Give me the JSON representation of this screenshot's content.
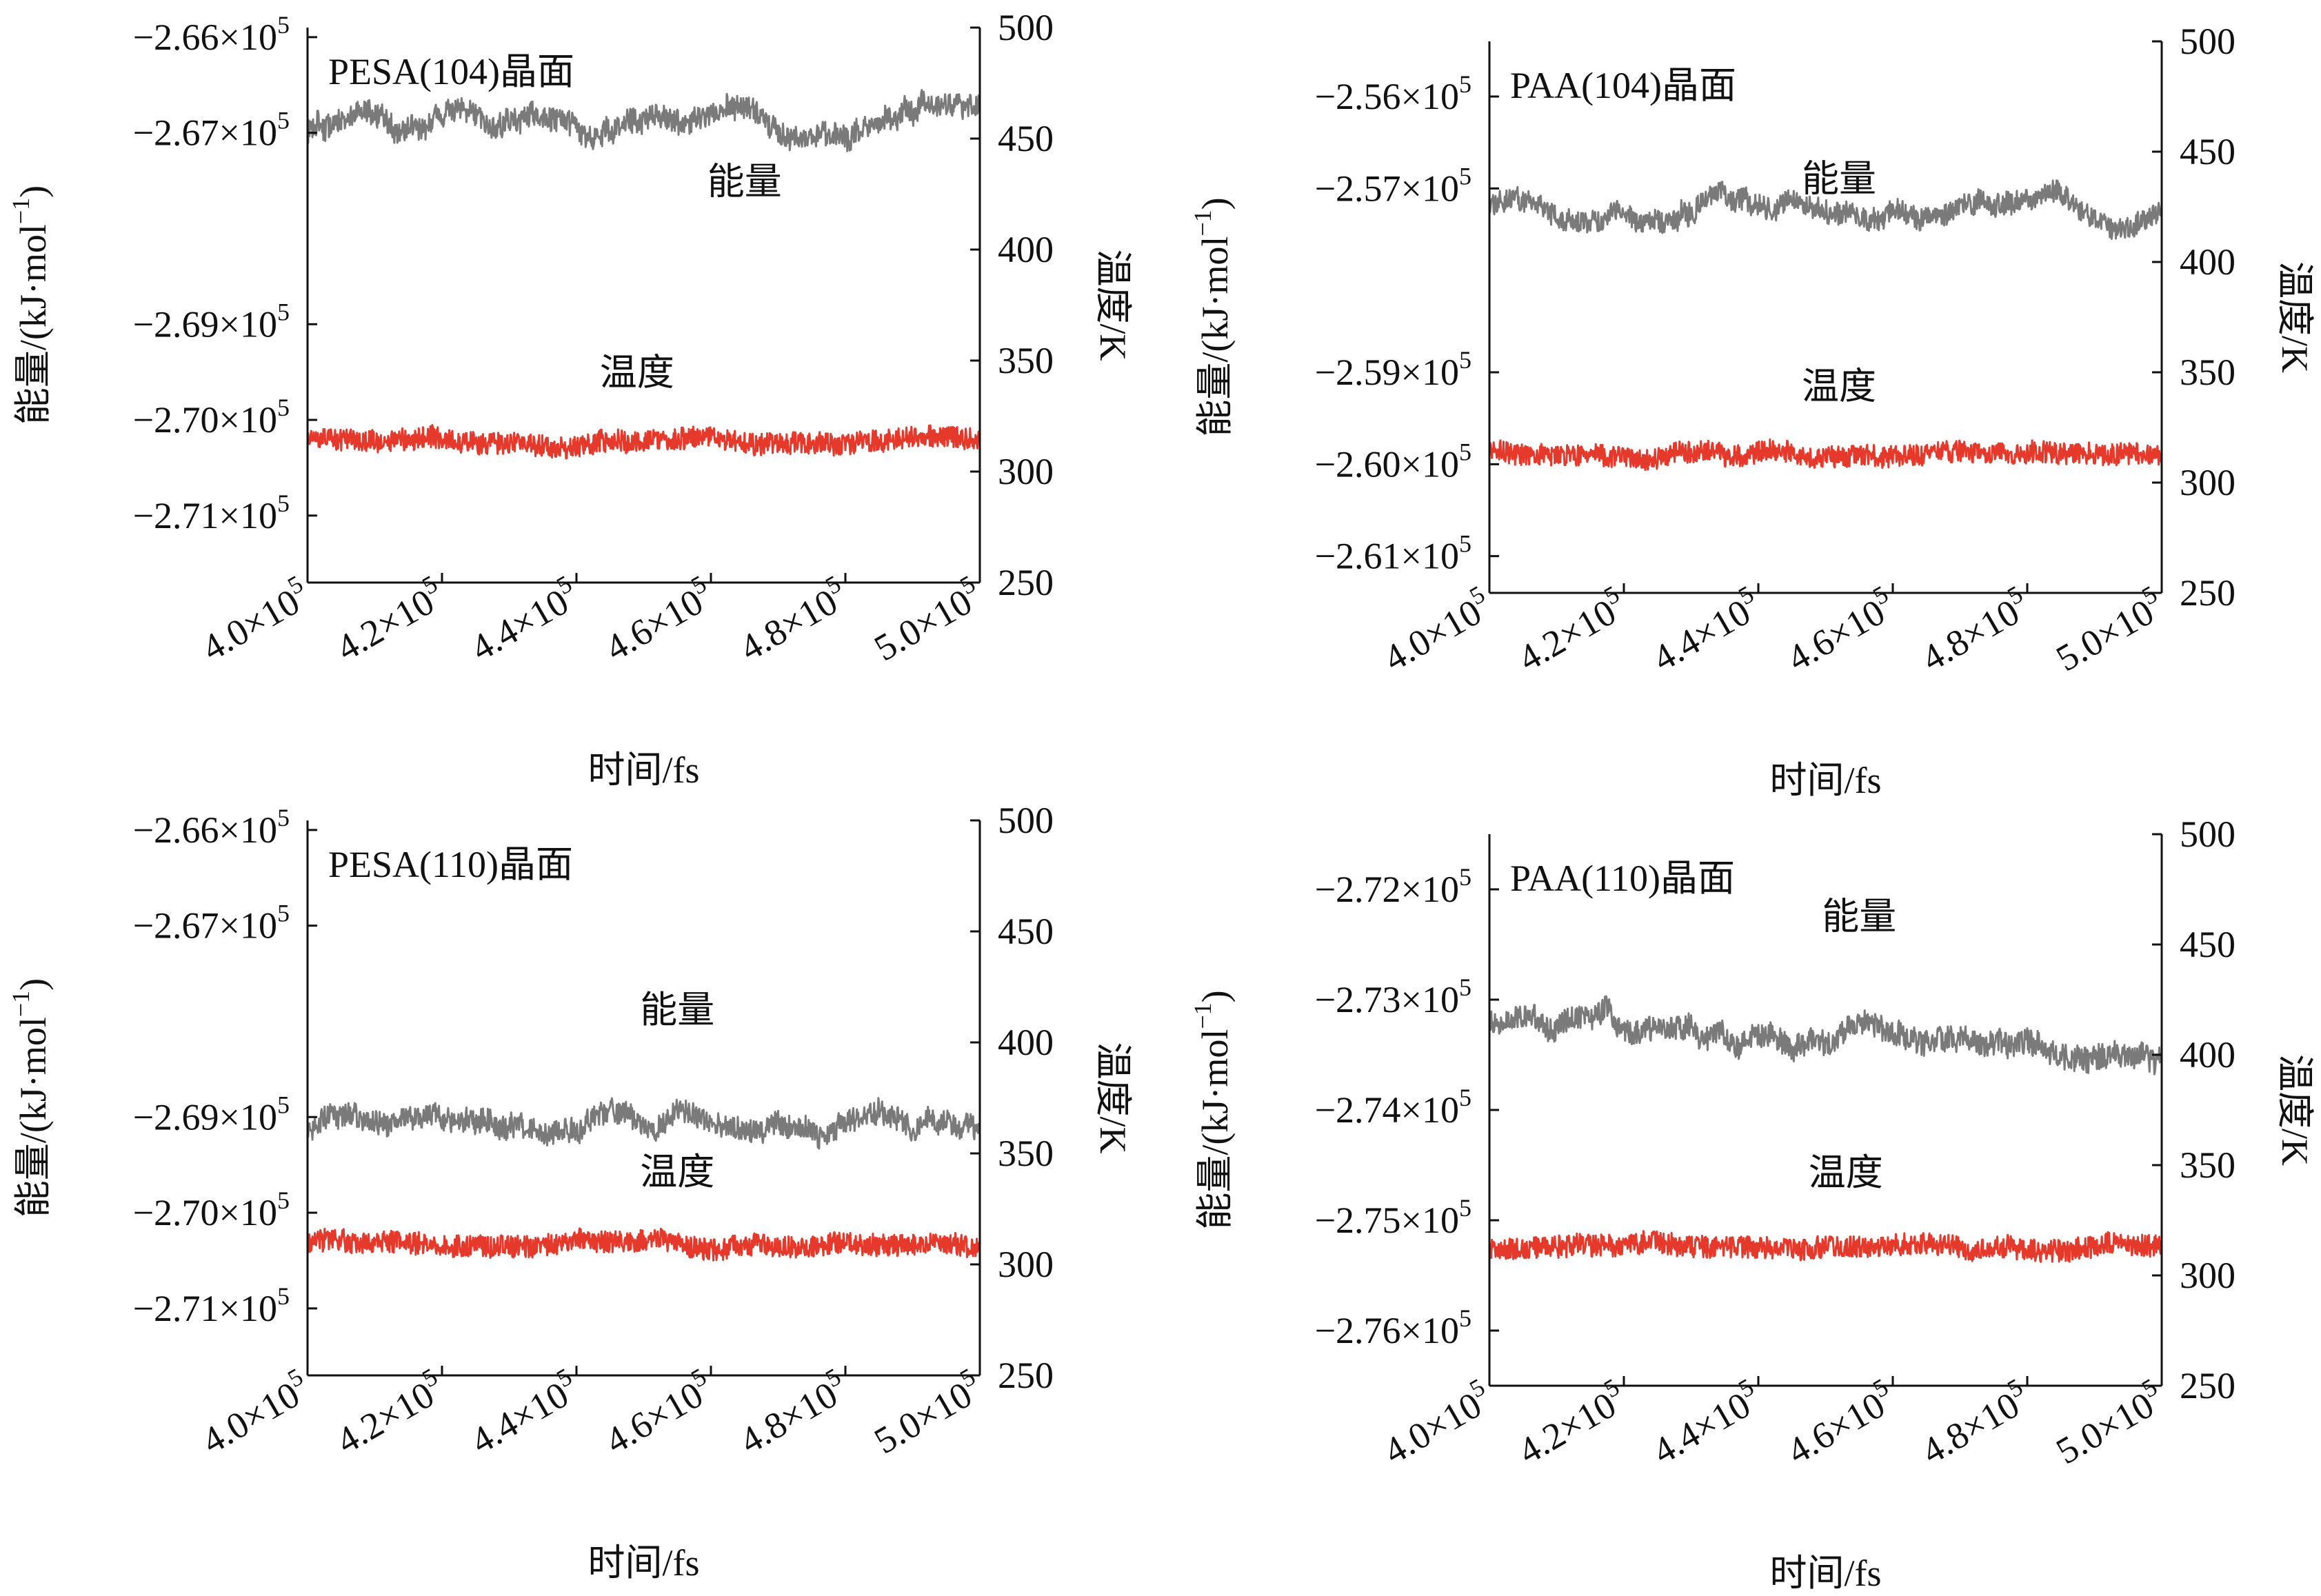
{
  "chart_data": [
    {
      "type": "line",
      "title": "PESA(104)晶面",
      "xlabel": "时间/fs",
      "ylabel_left": "能量/(kJ·mol⁻¹)",
      "ylabel_right": "温度/K",
      "x_range": [
        400000,
        500000
      ],
      "x_ticks": [
        400000,
        420000,
        440000,
        460000,
        480000,
        500000
      ],
      "x_tick_labels": [
        "4.0×10⁵",
        "4.2×10⁵",
        "4.4×10⁵",
        "4.6×10⁵",
        "4.8×10⁵",
        "5.0×10⁵"
      ],
      "y_left_range": [
        -271700,
        -265900
      ],
      "y_left_ticks": [
        -266000,
        -267000,
        -269000,
        -270000,
        -271000
      ],
      "y_left_tick_labels": [
        "−2.66×10⁵",
        "−2.67×10⁵",
        "−2.69×10⁵",
        "−2.70×10⁵",
        "−2.71×10⁵"
      ],
      "y_right_range": [
        250,
        500
      ],
      "y_right_ticks": [
        250,
        300,
        350,
        400,
        450,
        500
      ],
      "y_right_tick_labels": [
        "250",
        "300",
        "350",
        "400",
        "450",
        "500"
      ],
      "series": [
        {
          "name": "能量",
          "axis": "left",
          "color": "#7a7a7a",
          "mean": -266900,
          "noise": 120,
          "wobble": 150,
          "seed": 11
        },
        {
          "name": "温度",
          "axis": "right",
          "color": "#e5392b",
          "mean": 314,
          "noise": 5,
          "wobble": 1.5,
          "seed": 12
        }
      ],
      "annotations": [
        {
          "text": "能量",
          "x": 465000,
          "y": 425,
          "axis": "right"
        },
        {
          "text": "温度",
          "x": 449000,
          "y": 339,
          "axis": "right"
        }
      ]
    },
    {
      "type": "line",
      "title": "PAA(104)晶面",
      "xlabel": "时间/fs",
      "ylabel_left": "能量/(kJ·mol⁻¹)",
      "ylabel_right": "温度/K",
      "x_range": [
        400000,
        500000
      ],
      "x_ticks": [
        400000,
        420000,
        440000,
        460000,
        480000,
        500000
      ],
      "x_tick_labels": [
        "4.0×10⁵",
        "4.2×10⁵",
        "4.4×10⁵",
        "4.6×10⁵",
        "4.8×10⁵",
        "5.0×10⁵"
      ],
      "y_left_range": [
        -261400,
        -255400
      ],
      "y_left_ticks": [
        -256000,
        -257000,
        -259000,
        -260000,
        -261000
      ],
      "y_left_tick_labels": [
        "−2.56×10⁵",
        "−2.57×10⁵",
        "−2.59×10⁵",
        "−2.60×10⁵",
        "−2.61×10⁵"
      ],
      "y_right_range": [
        250,
        500
      ],
      "y_right_ticks": [
        250,
        300,
        350,
        400,
        450,
        500
      ],
      "y_right_tick_labels": [
        "250",
        "300",
        "350",
        "400",
        "450",
        "500"
      ],
      "series": [
        {
          "name": "能量",
          "axis": "left",
          "color": "#7a7a7a",
          "mean": -257200,
          "noise": 120,
          "wobble": 130,
          "seed": 21
        },
        {
          "name": "温度",
          "axis": "right",
          "color": "#e5392b",
          "mean": 313,
          "noise": 5,
          "wobble": 1.5,
          "seed": 22
        }
      ],
      "annotations": [
        {
          "text": "能量",
          "x": 452000,
          "y": 432,
          "axis": "right"
        },
        {
          "text": "温度",
          "x": 452000,
          "y": 338,
          "axis": "right"
        }
      ]
    },
    {
      "type": "line",
      "title": "PESA(110)晶面",
      "xlabel": "时间/fs",
      "ylabel_left": "能量/(kJ·mol⁻¹)",
      "ylabel_right": "温度/K",
      "x_range": [
        400000,
        500000
      ],
      "x_ticks": [
        400000,
        420000,
        440000,
        460000,
        480000,
        500000
      ],
      "x_tick_labels": [
        "4.0×10⁵",
        "4.2×10⁵",
        "4.4×10⁵",
        "4.6×10⁵",
        "4.8×10⁵",
        "5.0×10⁵"
      ],
      "y_left_range": [
        -271700,
        -265900
      ],
      "y_left_ticks": [
        -266000,
        -267000,
        -269000,
        -270000,
        -271000
      ],
      "y_left_tick_labels": [
        "−2.66×10⁵",
        "−2.67×10⁵",
        "−2.69×10⁵",
        "−2.70×10⁵",
        "−2.71×10⁵"
      ],
      "y_right_range": [
        250,
        500
      ],
      "y_right_ticks": [
        250,
        300,
        350,
        400,
        450,
        500
      ],
      "y_right_tick_labels": [
        "250",
        "300",
        "350",
        "400",
        "450",
        "500"
      ],
      "series": [
        {
          "name": "能量",
          "axis": "left",
          "color": "#7a7a7a",
          "mean": -269050,
          "noise": 120,
          "wobble": 140,
          "seed": 31
        },
        {
          "name": "温度",
          "axis": "right",
          "color": "#e5392b",
          "mean": 309,
          "noise": 5,
          "wobble": 1.5,
          "seed": 32
        }
      ],
      "annotations": [
        {
          "text": "能量",
          "x": 455000,
          "y": 409,
          "axis": "right"
        },
        {
          "text": "温度",
          "x": 455000,
          "y": 336,
          "axis": "right"
        }
      ]
    },
    {
      "type": "line",
      "title": "PAA(110)晶面",
      "xlabel": "时间/fs",
      "ylabel_left": "能量/(kJ·mol⁻¹)",
      "ylabel_right": "温度/K",
      "x_range": [
        400000,
        500000
      ],
      "x_ticks": [
        400000,
        420000,
        440000,
        460000,
        480000,
        500000
      ],
      "x_tick_labels": [
        "4.0×10⁵",
        "4.2×10⁵",
        "4.4×10⁵",
        "4.6×10⁵",
        "4.8×10⁵",
        "5.0×10⁵"
      ],
      "y_left_range": [
        -276500,
        -271500
      ],
      "y_left_ticks": [
        -272000,
        -273000,
        -274000,
        -275000,
        -276000
      ],
      "y_left_tick_labels": [
        "−2.72×10⁵",
        "−2.73×10⁵",
        "−2.74×10⁵",
        "−2.75×10⁵",
        "−2.76×10⁵"
      ],
      "y_right_range": [
        250,
        500
      ],
      "y_right_ticks": [
        250,
        300,
        350,
        400,
        450,
        500
      ],
      "y_right_tick_labels": [
        "250",
        "300",
        "350",
        "400",
        "450",
        "500"
      ],
      "series": [
        {
          "name": "能量",
          "axis": "left",
          "color": "#7a7a7a",
          "mean": -273200,
          "noise": 110,
          "wobble": 120,
          "trend": -250,
          "seed": 41
        },
        {
          "name": "温度",
          "axis": "right",
          "color": "#e5392b",
          "mean": 313,
          "noise": 5,
          "wobble": 1.5,
          "seed": 42
        }
      ],
      "annotations": [
        {
          "text": "能量",
          "x": 455000,
          "y": 457,
          "axis": "right"
        },
        {
          "text": "温度",
          "x": 453000,
          "y": 341,
          "axis": "right"
        }
      ]
    }
  ]
}
